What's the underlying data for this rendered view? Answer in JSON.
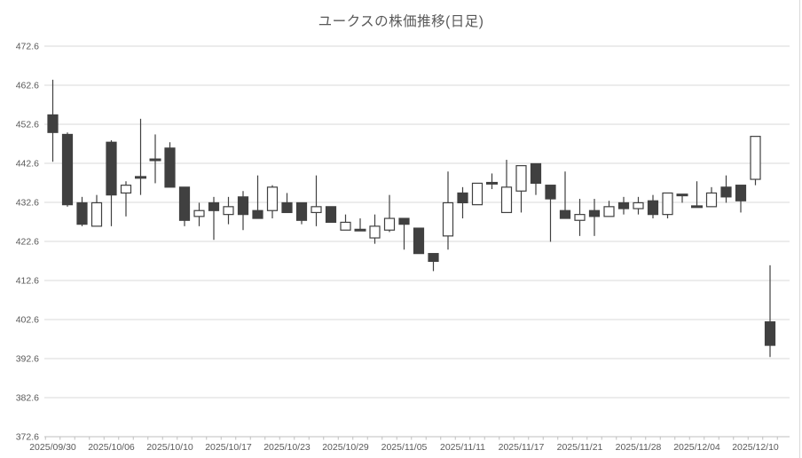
{
  "title": "ユークスの株価推移(日足)",
  "chart_data": {
    "type": "candlestick",
    "title": "ユークスの株価推移(日足)",
    "legend": "none",
    "grid": "horizontal",
    "y_axis": {
      "min": 372.6,
      "max": 472.6,
      "step": 10,
      "tick_labels": [
        "472.6",
        "462.6",
        "452.6",
        "442.6",
        "432.6",
        "422.6",
        "412.6",
        "402.6",
        "392.6",
        "382.6",
        "372.6"
      ]
    },
    "x_axis": {
      "tick_labels": [
        "2025/09/30",
        "2025/10/06",
        "2025/10/10",
        "2025/10/17",
        "2025/10/23",
        "2025/10/29",
        "2025/11/05",
        "2025/11/11",
        "2025/11/17",
        "2025/11/21",
        "2025/11/28",
        "2025/12/04",
        "2025/12/10"
      ],
      "label_interval": 4,
      "note": "one candle per trading day; a date label appears under every 4th candle; the final (50th) candle is unlabeled"
    },
    "candles_format": [
      "open",
      "high",
      "low",
      "close"
    ],
    "candles": [
      [
        455,
        464,
        443,
        450.5
      ],
      [
        450,
        450.5,
        431.5,
        432
      ],
      [
        432.5,
        434,
        426.5,
        427
      ],
      [
        426.5,
        434.5,
        426.5,
        432.5
      ],
      [
        448,
        448.5,
        426.5,
        434.5
      ],
      [
        435,
        438,
        429,
        437
      ],
      [
        439,
        454,
        434.5,
        439
      ],
      [
        443.5,
        450,
        437.5,
        443.5
      ],
      [
        446.5,
        448,
        436.5,
        436.5
      ],
      [
        436.5,
        436.5,
        426.5,
        428
      ],
      [
        429,
        432.5,
        426.5,
        430.5
      ],
      [
        432.5,
        434,
        423,
        430.5
      ],
      [
        429.5,
        434,
        427,
        431.5
      ],
      [
        434,
        435.5,
        425.5,
        429.5
      ],
      [
        430.5,
        439.5,
        428.5,
        428.5
      ],
      [
        430.5,
        437,
        428.5,
        436.5
      ],
      [
        432.5,
        435,
        430,
        430
      ],
      [
        432.5,
        432.5,
        427,
        428
      ],
      [
        430,
        439.5,
        426.5,
        431.5
      ],
      [
        431.5,
        431.5,
        427.5,
        427.5
      ],
      [
        425.5,
        429.5,
        425.5,
        427.5
      ],
      [
        425.5,
        428.5,
        425.5,
        425.5
      ],
      [
        423.5,
        429.5,
        422,
        426.5
      ],
      [
        425.5,
        434.5,
        425,
        428.5
      ],
      [
        428.5,
        428.5,
        420.5,
        427
      ],
      [
        426,
        426,
        419.5,
        419.5
      ],
      [
        419.5,
        419.5,
        415,
        417.5
      ],
      [
        424,
        440.5,
        420.5,
        432.5
      ],
      [
        435,
        436.5,
        428.5,
        432.5
      ],
      [
        432,
        437.5,
        432,
        437.5
      ],
      [
        437.5,
        440,
        436,
        437.5
      ],
      [
        430,
        443.5,
        430,
        436.5
      ],
      [
        435.5,
        442,
        430,
        442
      ],
      [
        442.5,
        442.5,
        434.5,
        437.5
      ],
      [
        437,
        437,
        422.5,
        433.5
      ],
      [
        430.5,
        440.5,
        428.5,
        428.5
      ],
      [
        428,
        433.5,
        424,
        429.5
      ],
      [
        430.5,
        433.5,
        424,
        429
      ],
      [
        429,
        433,
        429,
        431.5
      ],
      [
        432.5,
        434,
        429.5,
        431
      ],
      [
        431,
        434,
        429.5,
        432.5
      ],
      [
        433,
        434.5,
        428.5,
        429.5
      ],
      [
        429.5,
        435,
        428.5,
        435
      ],
      [
        434.5,
        434.5,
        432.5,
        434.5
      ],
      [
        431.5,
        438,
        431.5,
        431.5
      ],
      [
        431.5,
        436.5,
        431.5,
        435
      ],
      [
        436.5,
        439.5,
        432.5,
        434
      ],
      [
        437,
        437,
        430,
        433
      ],
      [
        438.5,
        449.5,
        437,
        449.5
      ],
      [
        402,
        416.5,
        393,
        396
      ]
    ],
    "colors": {
      "up_fill": "#ffffff",
      "down_fill": "#404040",
      "outline": "#404040",
      "gridline": "#d9d9d9",
      "axis": "#bfbfbf",
      "text": "#595959"
    }
  }
}
